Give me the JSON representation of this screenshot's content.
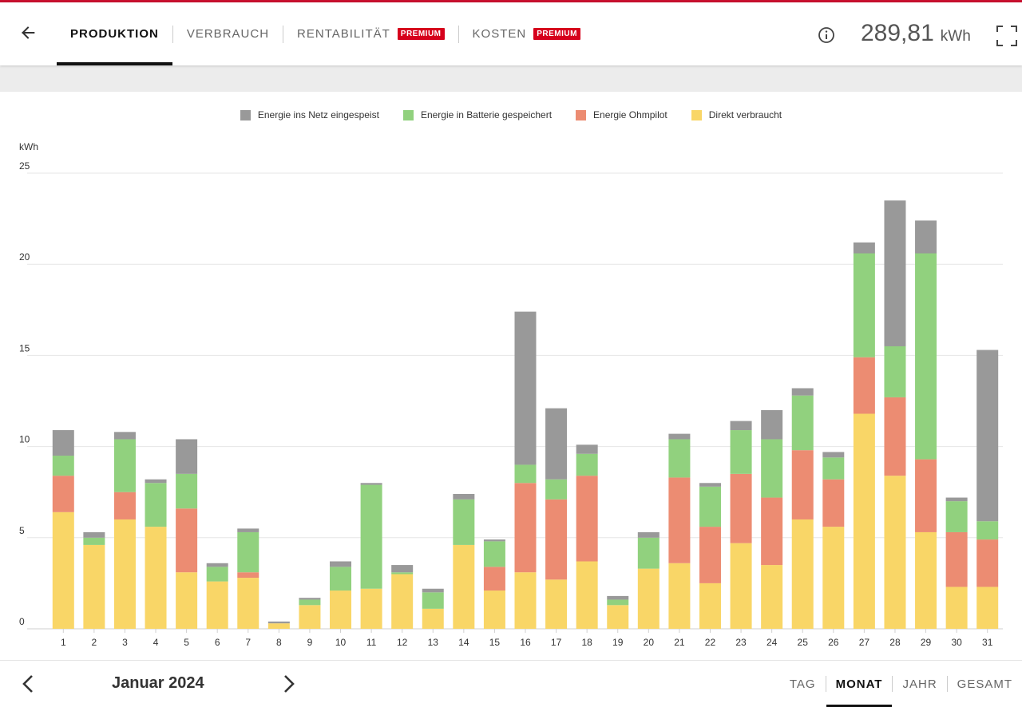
{
  "header": {
    "tabs": [
      {
        "label": "PRODUKTION",
        "active": true
      },
      {
        "label": "VERBRAUCH"
      },
      {
        "label": "RENTABILITÄT",
        "badge": "PREMIUM"
      },
      {
        "label": "KOSTEN",
        "badge": "PREMIUM"
      }
    ],
    "total_value": "289,81",
    "total_unit": "kWh",
    "icons": {
      "back": "arrow-left-icon",
      "info": "info-icon",
      "fullscreen": "fullscreen-icon"
    }
  },
  "colors": {
    "accent": "#c8102e",
    "premium_badge": "#d6001c",
    "grid": "#999999",
    "battery": "#91d17e",
    "ohmpilot": "#ec8c72",
    "direct": "#f9d667"
  },
  "chart_data": {
    "type": "bar",
    "stacked": true,
    "ylabel": "kWh",
    "ylim": [
      0,
      25
    ],
    "yticks": [
      0,
      5,
      10,
      15,
      20,
      25
    ],
    "grid": true,
    "legend_position": "top-center",
    "categories": [
      "1",
      "2",
      "3",
      "4",
      "5",
      "6",
      "7",
      "8",
      "9",
      "10",
      "11",
      "12",
      "13",
      "14",
      "15",
      "16",
      "17",
      "18",
      "19",
      "20",
      "21",
      "22",
      "23",
      "24",
      "25",
      "26",
      "27",
      "28",
      "29",
      "30",
      "31"
    ],
    "series": [
      {
        "name": "Direkt verbraucht",
        "color": "#f9d667",
        "values": [
          6.4,
          4.6,
          6.0,
          5.6,
          3.1,
          2.6,
          2.8,
          0.3,
          1.3,
          2.1,
          2.2,
          3.0,
          1.1,
          4.6,
          2.1,
          3.1,
          2.7,
          3.7,
          1.3,
          3.3,
          3.6,
          2.5,
          4.7,
          3.5,
          6.0,
          5.6,
          11.8,
          8.4,
          5.3,
          2.3,
          2.3
        ]
      },
      {
        "name": "Energie Ohmpilot",
        "color": "#ec8c72",
        "values": [
          2.0,
          0,
          1.5,
          0,
          3.5,
          0,
          0.3,
          0,
          0,
          0,
          0,
          0,
          0,
          0,
          1.3,
          4.9,
          4.4,
          4.7,
          0,
          0,
          4.7,
          3.1,
          3.8,
          3.7,
          3.8,
          2.6,
          3.1,
          4.3,
          4.0,
          3.0,
          2.6
        ]
      },
      {
        "name": "Energie in Batterie gespeichert",
        "color": "#91d17e",
        "values": [
          1.1,
          0.4,
          2.9,
          2.4,
          1.9,
          0.8,
          2.2,
          0,
          0.3,
          1.3,
          5.7,
          0.1,
          0.9,
          2.5,
          1.4,
          1.0,
          1.1,
          1.2,
          0.3,
          1.7,
          2.1,
          2.2,
          2.4,
          3.2,
          3.0,
          1.2,
          5.7,
          2.8,
          11.3,
          1.7,
          1.0
        ]
      },
      {
        "name": "Energie ins Netz eingespeist",
        "color": "#999999",
        "values": [
          1.4,
          0.3,
          0.4,
          0.2,
          1.9,
          0.2,
          0.2,
          0.1,
          0.1,
          0.3,
          0.1,
          0.4,
          0.2,
          0.3,
          0.1,
          8.4,
          3.9,
          0.5,
          0.2,
          0.3,
          0.3,
          0.2,
          0.5,
          1.6,
          0.4,
          0.3,
          0.6,
          8.0,
          1.8,
          0.2,
          9.4
        ]
      }
    ]
  },
  "footer": {
    "period": "Januar 2024",
    "ranges": [
      {
        "label": "TAG"
      },
      {
        "label": "MONAT",
        "active": true
      },
      {
        "label": "JAHR"
      },
      {
        "label": "GESAMT"
      }
    ]
  }
}
